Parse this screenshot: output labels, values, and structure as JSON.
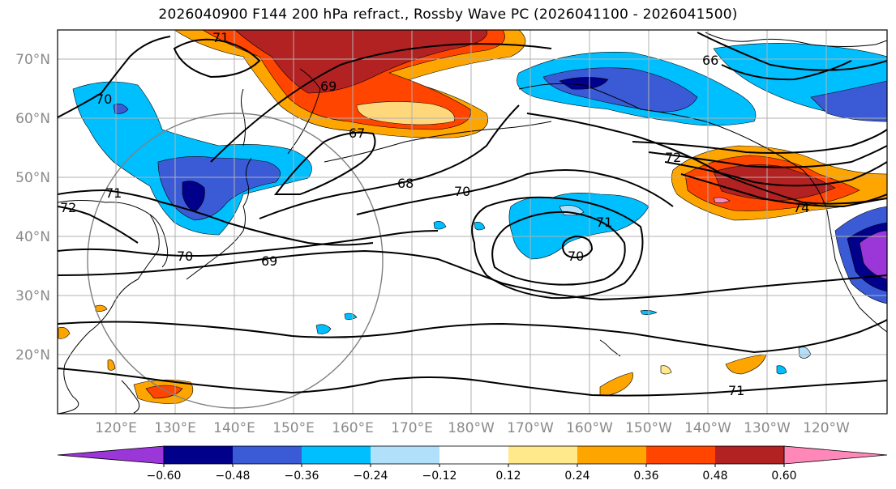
{
  "title": "2026040900 F144 200 hPa refract., Rossby Wave PC (2026041100 - 2026041500)",
  "lat_labels": [
    "70°N",
    "60°N",
    "50°N",
    "40°N",
    "30°N",
    "20°N"
  ],
  "lon_labels": [
    "120°E",
    "130°E",
    "140°E",
    "150°E",
    "160°E",
    "170°E",
    "180°W",
    "170°W",
    "160°W",
    "150°W",
    "140°W",
    "130°W",
    "120°W"
  ],
  "colorbar": {
    "ticks": [
      "−0.60",
      "−0.48",
      "−0.36",
      "−0.24",
      "−0.12",
      "0.12",
      "0.24",
      "0.36",
      "0.48",
      "0.60"
    ],
    "colors": [
      "#9b36d8",
      "#00008b",
      "#3b5bd6",
      "#00bfff",
      "#b0e0fa",
      "#ffffff",
      "#ffe98a",
      "#ffa500",
      "#ff4500",
      "#b22222",
      "#ff88b8"
    ]
  },
  "contour_labels": [
    "71",
    "71",
    "70",
    "69",
    "67",
    "68",
    "70",
    "72",
    "74",
    "71",
    "70",
    "69",
    "70",
    "71",
    "72",
    "66"
  ],
  "colors": {
    "contour": "#000000",
    "grid": "#b0b0b0",
    "circle": "#808080"
  }
}
